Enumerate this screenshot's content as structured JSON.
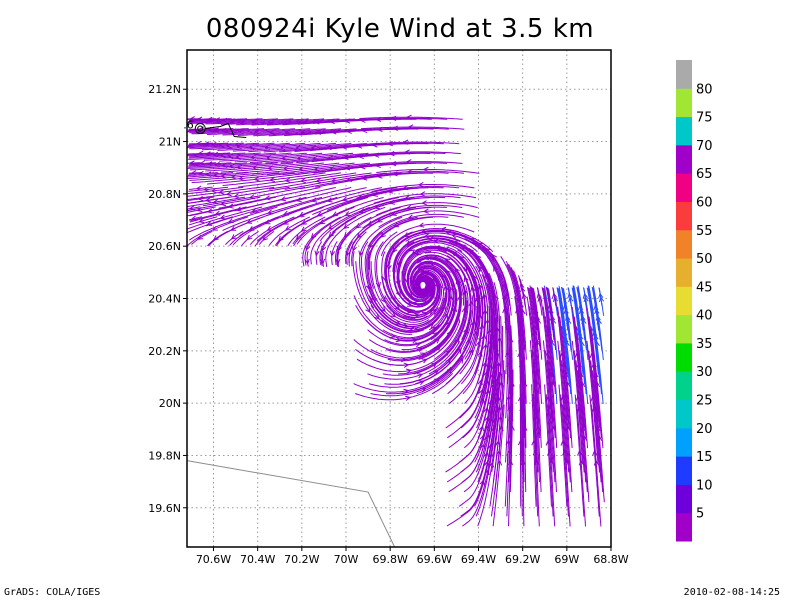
{
  "title": "080924i Kyle Wind at 3.5 km",
  "footer": {
    "left": "GrADS: COLA/IGES",
    "right": "2010-02-08-14:25"
  },
  "chart_data": {
    "type": "streamline",
    "title": "080924i Kyle Wind at 3.5 km",
    "xlim": [
      -70.72,
      -68.8
    ],
    "ylim": [
      19.45,
      21.35
    ],
    "x_ticks": [
      -70.6,
      -70.4,
      -70.2,
      -70.0,
      -69.8,
      -69.6,
      -69.4,
      -69.2,
      -69.0,
      -68.8
    ],
    "x_tick_labels": [
      "70.6W",
      "70.4W",
      "70.2W",
      "70W",
      "69.8W",
      "69.6W",
      "69.4W",
      "69.2W",
      "69W",
      "68.8W"
    ],
    "y_ticks": [
      19.6,
      19.8,
      20.0,
      20.2,
      20.4,
      20.6,
      20.8,
      21.0,
      21.2
    ],
    "y_tick_labels": [
      "19.6N",
      "19.8N",
      "20N",
      "20.2N",
      "20.4N",
      "20.6N",
      "20.8N",
      "21N",
      "21.2N"
    ],
    "grid": true,
    "circulation_center": {
      "lon": -69.65,
      "lat": 20.45
    },
    "track_marker": {
      "lon": -70.66,
      "lat": 21.05,
      "label": ".6"
    },
    "coastline": [
      [
        -70.72,
        19.78
      ],
      [
        -69.9,
        19.66
      ],
      [
        -69.78,
        19.45
      ]
    ],
    "colorbar": {
      "labels": [
        "5",
        "10",
        "15",
        "20",
        "25",
        "30",
        "35",
        "40",
        "45",
        "50",
        "55",
        "60",
        "65",
        "70",
        "75",
        "80"
      ],
      "colors": [
        "#a000c8",
        "#6e00dc",
        "#1e3cff",
        "#00a0ff",
        "#00c8c8",
        "#00d28c",
        "#00dc00",
        "#a0e632",
        "#e6dc32",
        "#e6af2d",
        "#f08228",
        "#fa3c3c",
        "#f00082",
        "#a000c8",
        "#00c8c8",
        "#a0e632",
        "#aaaaaa"
      ]
    },
    "streamline_color": "#9000cc",
    "east_streamline_color": "#2a4cff"
  }
}
